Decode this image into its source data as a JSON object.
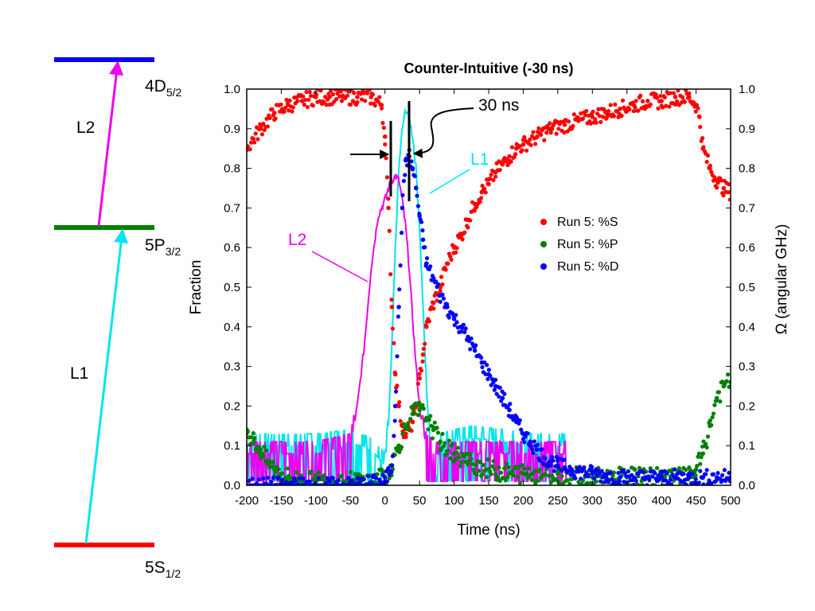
{
  "energy_diagram": {
    "levels": [
      {
        "name": "5S",
        "sub": "1/2",
        "color": "#ff0000"
      },
      {
        "name": "5P",
        "sub": "3/2",
        "color": "#008000"
      },
      {
        "name": "4D",
        "sub": "5/2",
        "color": "#0000ff"
      }
    ],
    "transitions": [
      {
        "label": "L1",
        "from": "5S",
        "to": "5P",
        "color": "#00e5ee"
      },
      {
        "label": "L2",
        "from": "5P",
        "to": "4D",
        "color": "#ee00ee"
      }
    ]
  },
  "chart_data": {
    "type": "scatter",
    "title": "Counter-Intuitive (-30 ns)",
    "xlabel": "Time (ns)",
    "ylabel": "Fraction",
    "y2label": "Ω (angular GHz)",
    "xlim": [
      -200,
      500
    ],
    "ylim": [
      0,
      1.0
    ],
    "y2lim": [
      0,
      1.0
    ],
    "xticks": [
      "-200",
      "-150",
      "-100",
      "-50",
      "0",
      "50",
      "100",
      "150",
      "200",
      "250",
      "300",
      "350",
      "400",
      "450",
      "500"
    ],
    "yticks": [
      "0.0",
      "0.1",
      "0.2",
      "0.3",
      "0.4",
      "0.5",
      "0.6",
      "0.7",
      "0.8",
      "0.9",
      "1.0"
    ],
    "legend_position": "middle-right",
    "series": [
      {
        "name": "Run 5: %S",
        "kind": "points",
        "color": "#ff0000",
        "x": [
          -200,
          -180,
          -160,
          -140,
          -120,
          -100,
          -80,
          -60,
          -40,
          -20,
          -5,
          0,
          5,
          10,
          15,
          20,
          25,
          30,
          35,
          40,
          45,
          50,
          55,
          60,
          70,
          80,
          90,
          100,
          110,
          120,
          130,
          140,
          150,
          160,
          170,
          180,
          190,
          200,
          220,
          240,
          260,
          280,
          300,
          320,
          340,
          360,
          380,
          400,
          420,
          440,
          450,
          455,
          460,
          470,
          480,
          490,
          500
        ],
        "y": [
          0.85,
          0.9,
          0.94,
          0.96,
          0.97,
          0.98,
          0.98,
          0.98,
          0.98,
          0.98,
          0.96,
          0.88,
          0.7,
          0.45,
          0.28,
          0.2,
          0.15,
          0.13,
          0.14,
          0.16,
          0.2,
          0.27,
          0.33,
          0.4,
          0.46,
          0.5,
          0.56,
          0.6,
          0.63,
          0.67,
          0.71,
          0.74,
          0.76,
          0.79,
          0.81,
          0.83,
          0.85,
          0.86,
          0.88,
          0.9,
          0.91,
          0.92,
          0.93,
          0.94,
          0.95,
          0.96,
          0.97,
          0.97,
          0.98,
          0.98,
          0.96,
          0.93,
          0.85,
          0.8,
          0.77,
          0.75,
          0.74
        ]
      },
      {
        "name": "Run 5: %P",
        "kind": "points",
        "color": "#008000",
        "x": [
          -200,
          -190,
          -180,
          -170,
          -160,
          -150,
          -140,
          -120,
          -100,
          -80,
          -60,
          -40,
          -20,
          0,
          10,
          20,
          30,
          40,
          50,
          60,
          70,
          80,
          100,
          120,
          150,
          180,
          200,
          250,
          300,
          350,
          400,
          440,
          450,
          460,
          470,
          480,
          490,
          500
        ],
        "y": [
          0.14,
          0.11,
          0.09,
          0.06,
          0.04,
          0.03,
          0.02,
          0.01,
          0.01,
          0.01,
          0.01,
          0.01,
          0.01,
          0.02,
          0.05,
          0.1,
          0.15,
          0.18,
          0.19,
          0.17,
          0.14,
          0.11,
          0.08,
          0.06,
          0.04,
          0.03,
          0.03,
          0.03,
          0.02,
          0.02,
          0.02,
          0.02,
          0.04,
          0.08,
          0.15,
          0.22,
          0.25,
          0.26
        ]
      },
      {
        "name": "Run 5: %D",
        "kind": "points",
        "color": "#0000ff",
        "x": [
          -200,
          -150,
          -100,
          -50,
          0,
          10,
          15,
          20,
          25,
          30,
          35,
          40,
          45,
          50,
          55,
          60,
          70,
          80,
          90,
          100,
          110,
          120,
          130,
          140,
          150,
          160,
          170,
          180,
          190,
          200,
          210,
          220,
          230,
          240,
          250,
          260,
          270,
          280,
          300,
          320,
          340,
          360,
          380,
          400,
          420,
          440,
          460,
          480,
          500
        ],
        "y": [
          0.0,
          0.0,
          0.0,
          0.0,
          0.01,
          0.05,
          0.2,
          0.45,
          0.7,
          0.82,
          0.83,
          0.8,
          0.75,
          0.68,
          0.62,
          0.56,
          0.52,
          0.48,
          0.45,
          0.42,
          0.4,
          0.37,
          0.34,
          0.31,
          0.28,
          0.25,
          0.22,
          0.19,
          0.16,
          0.13,
          0.11,
          0.09,
          0.07,
          0.06,
          0.05,
          0.045,
          0.04,
          0.035,
          0.03,
          0.025,
          0.02,
          0.02,
          0.02,
          0.02,
          0.02,
          0.02,
          0.02,
          0.02,
          0.02
        ]
      },
      {
        "name": "L1",
        "kind": "line",
        "color": "#00e5ee",
        "x": [
          -200,
          -100,
          -50,
          -20,
          0,
          5,
          10,
          15,
          20,
          25,
          30,
          35,
          40,
          45,
          50,
          55,
          60,
          65,
          70,
          75,
          80,
          120,
          180,
          220,
          262
        ],
        "y": [
          0.1,
          0.1,
          0.11,
          0.09,
          0.05,
          0.15,
          0.35,
          0.6,
          0.8,
          0.9,
          0.95,
          0.93,
          0.88,
          0.8,
          0.65,
          0.45,
          0.25,
          0.1,
          0.04,
          0.02,
          0.1,
          0.12,
          0.11,
          0.1,
          0.1
        ]
      },
      {
        "name": "L2",
        "kind": "line",
        "color": "#ee00ee",
        "x": [
          -200,
          -100,
          -50,
          -40,
          -30,
          -20,
          -10,
          0,
          5,
          10,
          15,
          20,
          25,
          30,
          35,
          40,
          45,
          50,
          55,
          60,
          70,
          80,
          100,
          150,
          200,
          262
        ],
        "y": [
          0.08,
          0.08,
          0.1,
          0.2,
          0.35,
          0.55,
          0.68,
          0.72,
          0.75,
          0.77,
          0.78,
          0.77,
          0.72,
          0.65,
          0.55,
          0.42,
          0.3,
          0.2,
          0.14,
          0.1,
          0.08,
          0.08,
          0.08,
          0.08,
          0.08,
          0.08
        ]
      }
    ],
    "annotations": [
      {
        "text": "30 ns",
        "kind": "delay-marker"
      },
      {
        "text": "L1",
        "kind": "curve-label",
        "color": "#00e5ee"
      },
      {
        "text": "L2",
        "kind": "curve-label",
        "color": "#ee00ee"
      }
    ]
  }
}
